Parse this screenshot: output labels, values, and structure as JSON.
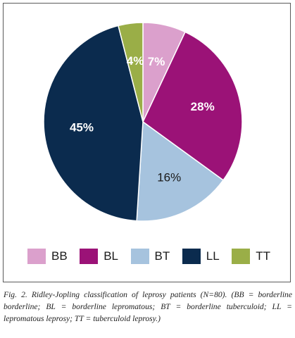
{
  "chart_data": {
    "type": "pie",
    "categories": [
      "BB",
      "BL",
      "BT",
      "LL",
      "TT"
    ],
    "values": [
      7,
      28,
      16,
      45,
      4
    ],
    "data_labels": [
      "7%",
      "28%",
      "16%",
      "45%",
      "4%"
    ],
    "colors": [
      "#dba0cc",
      "#9b1277",
      "#a6c3de",
      "#0b2b4e",
      "#9aae47"
    ],
    "label_colors": [
      "#ffffff",
      "#ffffff",
      "#1a1a1a",
      "#ffffff",
      "#ffffff"
    ],
    "legend_position": "bottom",
    "start_angle_deg": 0,
    "direction": "clockwise"
  },
  "caption": "Fig. 2. Ridley-Jopling classification of leprosy patients (N=80). (BB = borderline borderline; BL = borderline lepromatous; BT = borderline tuberculoid; LL = lepromatous leprosy; TT = tuberculoid leprosy.)"
}
